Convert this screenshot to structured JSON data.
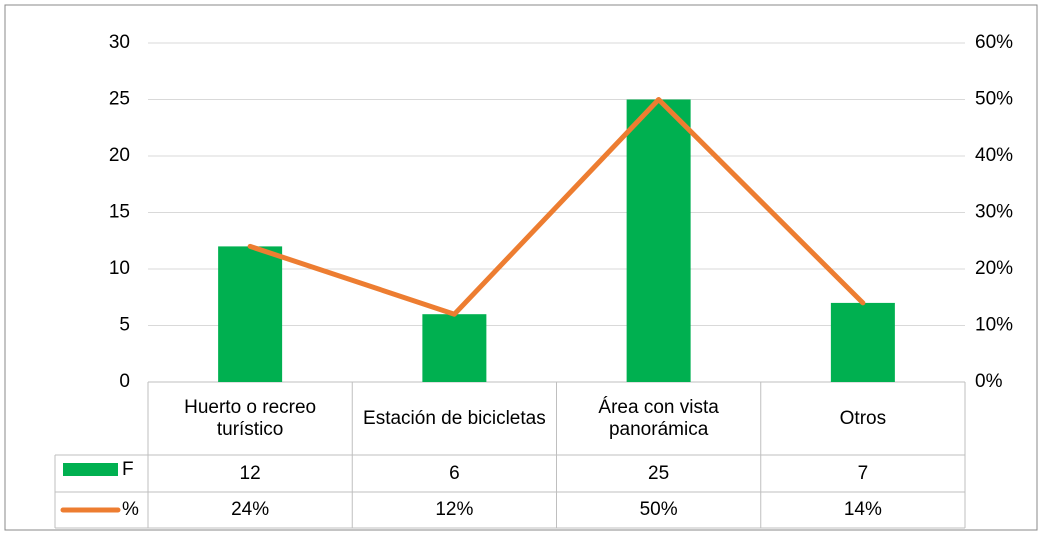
{
  "chart_data": {
    "type": "bar",
    "categories": [
      "Huerto o recreo turístico",
      "Estación de bicicletas",
      "Área con vista panorámica",
      "Otros"
    ],
    "series": [
      {
        "name": "F",
        "type": "bar",
        "color": "#00b050",
        "values": [
          12,
          6,
          25,
          7
        ]
      },
      {
        "name": "%",
        "type": "line",
        "color": "#ed7d31",
        "axis": "y2",
        "values": [
          24,
          12,
          50,
          14
        ],
        "value_labels": [
          "24%",
          "12%",
          "50%",
          "14%"
        ]
      }
    ],
    "ylim": [
      0,
      30
    ],
    "yticks": [
      0,
      5,
      10,
      15,
      20,
      25,
      30
    ],
    "y2lim": [
      0,
      60
    ],
    "y2ticks": [
      {
        "value": 0,
        "label": "0%"
      },
      {
        "value": 10,
        "label": "10%"
      },
      {
        "value": 20,
        "label": "20%"
      },
      {
        "value": 30,
        "label": "30%"
      },
      {
        "value": 40,
        "label": "40%"
      },
      {
        "value": 50,
        "label": "50%"
      },
      {
        "value": 60,
        "label": "60%"
      }
    ],
    "grid": true
  }
}
